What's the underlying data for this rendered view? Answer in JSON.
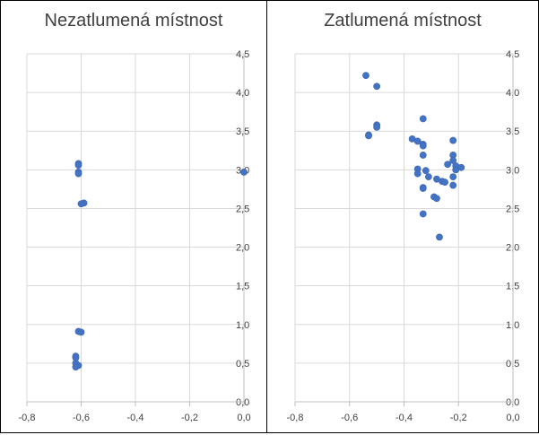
{
  "chart_data": [
    {
      "type": "scatter",
      "title": "Nezatlumená místnost",
      "xlabel": "",
      "ylabel": "",
      "xlim": [
        -0.8,
        0.0
      ],
      "ylim": [
        0.0,
        4.5
      ],
      "x_ticks": [
        "-0,8",
        "-0,6",
        "-0,4",
        "-0,2",
        "0,0"
      ],
      "y_ticks": [
        "0,0",
        "0,5",
        "1,0",
        "1,5",
        "2,0",
        "2,5",
        "3,0",
        "3,5",
        "4,0",
        "4,5"
      ],
      "grid": true,
      "legend": "none",
      "marker_color": "#4472C4",
      "series": [
        {
          "points": [
            {
              "x": -0.61,
              "y": 3.08
            },
            {
              "x": -0.61,
              "y": 3.06
            },
            {
              "x": -0.61,
              "y": 2.97
            },
            {
              "x": -0.61,
              "y": 2.95
            },
            {
              "x": -0.59,
              "y": 2.57
            },
            {
              "x": -0.6,
              "y": 2.56
            },
            {
              "x": 0.0,
              "y": 2.97
            },
            {
              "x": -0.61,
              "y": 0.91
            },
            {
              "x": -0.6,
              "y": 0.9
            },
            {
              "x": -0.62,
              "y": 0.59
            },
            {
              "x": -0.62,
              "y": 0.57
            },
            {
              "x": -0.62,
              "y": 0.5
            },
            {
              "x": -0.61,
              "y": 0.47
            },
            {
              "x": -0.62,
              "y": 0.45
            }
          ]
        }
      ]
    },
    {
      "type": "scatter",
      "title": "Zatlumená místnost",
      "xlabel": "",
      "ylabel": "",
      "xlim": [
        -0.8,
        0.0
      ],
      "ylim": [
        0.0,
        4.5
      ],
      "x_ticks": [
        "-0,8",
        "-0,6",
        "-0,4",
        "-0,2",
        "0,0"
      ],
      "y_ticks": [
        "0,0",
        "0,5",
        "1,0",
        "1,5",
        "2,0",
        "2,5",
        "3,0",
        "3,5",
        "4,0",
        "4,5"
      ],
      "grid": true,
      "legend": "none",
      "marker_color": "#4472C4",
      "series": [
        {
          "points": [
            {
              "x": -0.54,
              "y": 4.22
            },
            {
              "x": -0.5,
              "y": 4.08
            },
            {
              "x": -0.5,
              "y": 3.58
            },
            {
              "x": -0.5,
              "y": 3.55
            },
            {
              "x": -0.53,
              "y": 3.45
            },
            {
              "x": -0.53,
              "y": 3.44
            },
            {
              "x": -0.33,
              "y": 3.66
            },
            {
              "x": -0.37,
              "y": 3.4
            },
            {
              "x": -0.35,
              "y": 3.37
            },
            {
              "x": -0.33,
              "y": 3.33
            },
            {
              "x": -0.33,
              "y": 3.31
            },
            {
              "x": -0.33,
              "y": 3.19
            },
            {
              "x": -0.22,
              "y": 3.38
            },
            {
              "x": -0.22,
              "y": 3.19
            },
            {
              "x": -0.22,
              "y": 3.12
            },
            {
              "x": -0.24,
              "y": 3.07
            },
            {
              "x": -0.21,
              "y": 3.05
            },
            {
              "x": -0.19,
              "y": 3.03
            },
            {
              "x": -0.21,
              "y": 3.0
            },
            {
              "x": -0.35,
              "y": 3.01
            },
            {
              "x": -0.32,
              "y": 2.99
            },
            {
              "x": -0.35,
              "y": 2.95
            },
            {
              "x": -0.31,
              "y": 2.91
            },
            {
              "x": -0.28,
              "y": 2.88
            },
            {
              "x": -0.22,
              "y": 2.91
            },
            {
              "x": -0.26,
              "y": 2.85
            },
            {
              "x": -0.25,
              "y": 2.84
            },
            {
              "x": -0.22,
              "y": 2.8
            },
            {
              "x": -0.33,
              "y": 2.77
            },
            {
              "x": -0.33,
              "y": 2.76
            },
            {
              "x": -0.29,
              "y": 2.65
            },
            {
              "x": -0.28,
              "y": 2.63
            },
            {
              "x": -0.33,
              "y": 2.43
            },
            {
              "x": -0.27,
              "y": 2.13
            }
          ]
        }
      ]
    }
  ]
}
